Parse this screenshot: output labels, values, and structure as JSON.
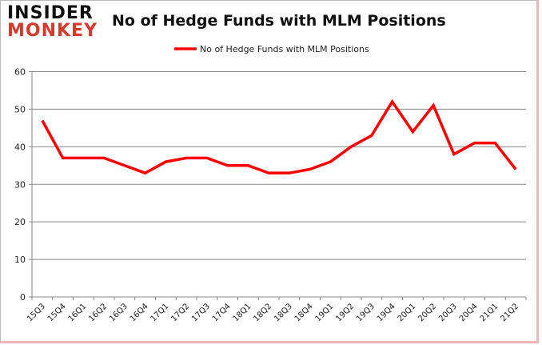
{
  "logo": {
    "line1": "INSIDER",
    "line2": "MONKEY"
  },
  "chart_data": {
    "type": "line",
    "title": "No of Hedge Funds with MLM Positions",
    "xlabel": "",
    "ylabel": "",
    "categories": [
      "15Q3",
      "15Q4",
      "16Q1",
      "16Q2",
      "16Q3",
      "16Q4",
      "17Q1",
      "17Q2",
      "17Q3",
      "17Q4",
      "18Q1",
      "18Q2",
      "18Q3",
      "18Q4",
      "19Q1",
      "19Q2",
      "19Q3",
      "19Q4",
      "20Q1",
      "20Q2",
      "20Q3",
      "20Q4",
      "21Q1",
      "21Q2"
    ],
    "series": [
      {
        "name": "No of Hedge Funds with MLM Positions",
        "color": "#ff0000",
        "values": [
          47,
          37,
          37,
          37,
          35,
          33,
          36,
          37,
          37,
          35,
          35,
          33,
          33,
          34,
          36,
          40,
          43,
          52,
          44,
          51,
          38,
          41,
          41,
          34
        ]
      }
    ],
    "ylim": [
      0,
      60
    ],
    "yticks": [
      0,
      10,
      20,
      30,
      40,
      50,
      60
    ],
    "grid": true,
    "legend": "top-center"
  }
}
